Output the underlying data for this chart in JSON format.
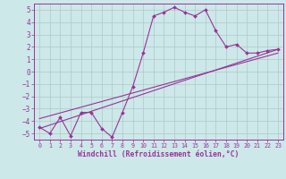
{
  "xlabel": "Windchill (Refroidissement éolien,°C)",
  "bg_color": "#cce8e8",
  "grid_color": "#b0c8c8",
  "line_color": "#993399",
  "spine_color": "#993399",
  "xlim": [
    -0.5,
    23.5
  ],
  "ylim": [
    -5.5,
    5.5
  ],
  "yticks": [
    -5,
    -4,
    -3,
    -2,
    -1,
    0,
    1,
    2,
    3,
    4,
    5
  ],
  "xticks": [
    0,
    1,
    2,
    3,
    4,
    5,
    6,
    7,
    8,
    9,
    10,
    11,
    12,
    13,
    14,
    15,
    16,
    17,
    18,
    19,
    20,
    21,
    22,
    23
  ],
  "main_x": [
    0,
    1,
    2,
    3,
    4,
    5,
    6,
    7,
    8,
    9,
    10,
    11,
    12,
    13,
    14,
    15,
    16,
    17,
    18,
    19,
    20,
    21,
    22,
    23
  ],
  "main_y": [
    -4.5,
    -5.0,
    -3.7,
    -5.2,
    -3.3,
    -3.3,
    -4.6,
    -5.3,
    -3.3,
    -1.2,
    1.5,
    4.5,
    4.8,
    5.2,
    4.8,
    4.5,
    5.0,
    3.3,
    2.0,
    2.2,
    1.5,
    1.5,
    1.7,
    1.8
  ],
  "line1_x": [
    0,
    23
  ],
  "line1_y": [
    -4.6,
    1.8
  ],
  "line2_x": [
    0,
    23
  ],
  "line2_y": [
    -3.8,
    1.5
  ]
}
